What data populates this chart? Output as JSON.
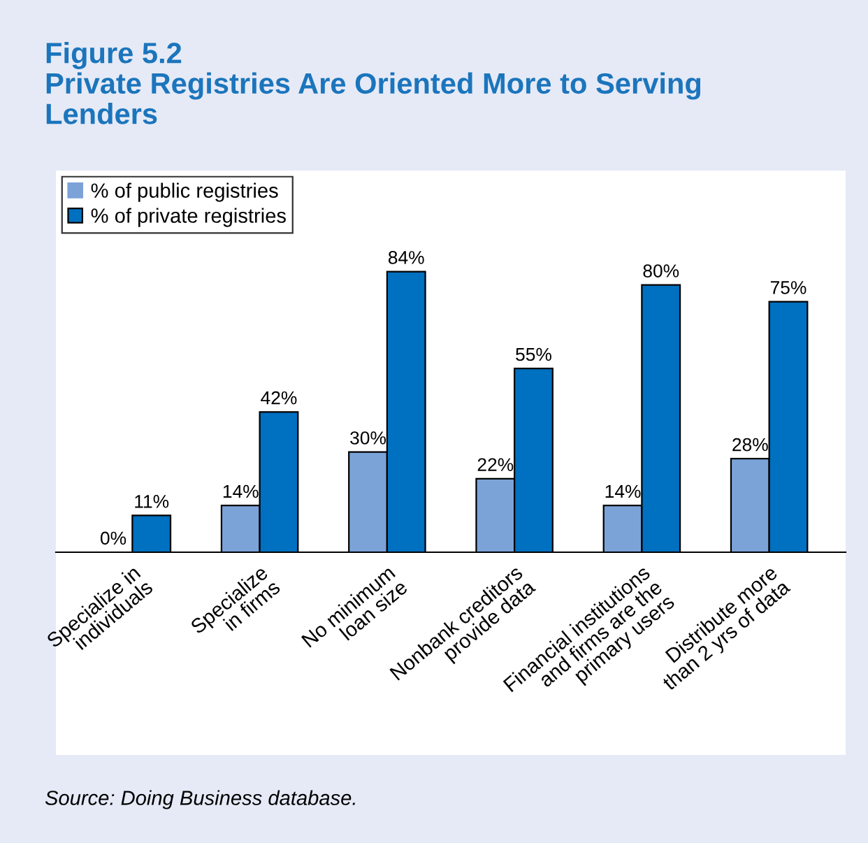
{
  "chart_data": {
    "type": "bar",
    "title": "Figure 5.2\nPrivate Registries Are Oriented More to Serving\nLenders",
    "categories": [
      "Specialize in\nindividuals",
      "Specialize\nin firms",
      "No minimum\nloan size",
      "Nonbank creditors\nprovide data",
      "Financial institutions\nand firms are the\nprimary users",
      "Distribute more\nthan 2 yrs of data"
    ],
    "series": [
      {
        "name": "% of public registries",
        "color": "#7ba3d8",
        "values": [
          0,
          14,
          30,
          22,
          14,
          28
        ],
        "value_labels": [
          "0%",
          "14%",
          "30%",
          "22%",
          "14%",
          "28%"
        ]
      },
      {
        "name": "% of private registries",
        "color": "#0070c0",
        "values": [
          11,
          42,
          84,
          55,
          80,
          75
        ],
        "value_labels": [
          "11%",
          "42%",
          "84%",
          "55%",
          "80%",
          "75%"
        ]
      }
    ],
    "legend": "top left",
    "grid": false,
    "annotations": [
      "Source: Doing Business database."
    ]
  }
}
